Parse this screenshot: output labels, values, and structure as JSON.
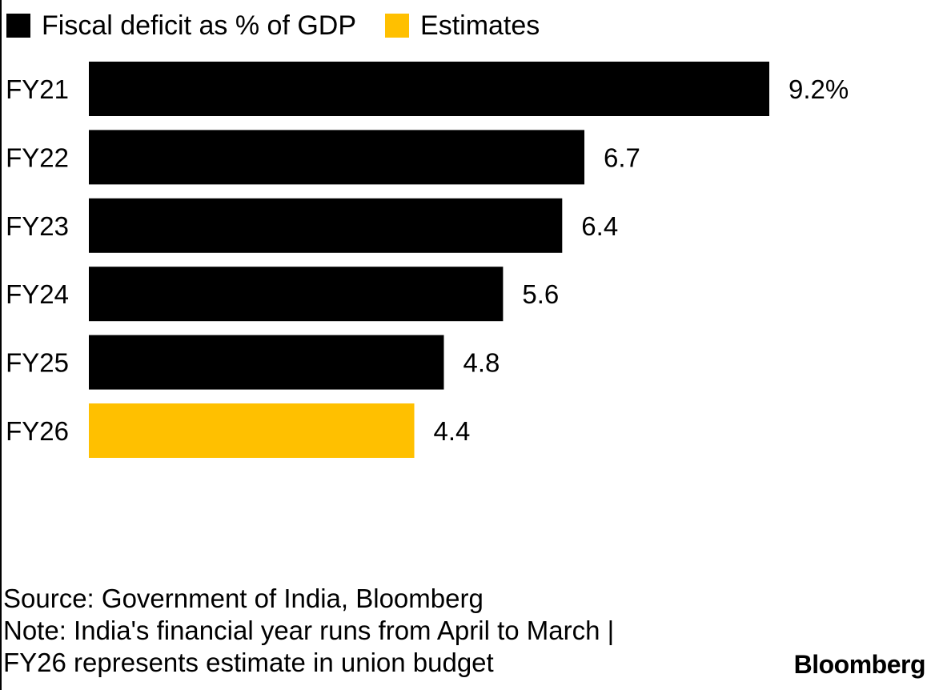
{
  "legend": [
    {
      "label": "Fiscal deficit as % of GDP",
      "color": "#000000"
    },
    {
      "label": "Estimates",
      "color": "#ffc000"
    }
  ],
  "chart_data": {
    "type": "bar",
    "orientation": "horizontal",
    "categories": [
      "FY21",
      "FY22",
      "FY23",
      "FY24",
      "FY25",
      "FY26"
    ],
    "values": [
      9.2,
      6.7,
      6.4,
      5.6,
      4.8,
      4.4
    ],
    "value_labels": [
      "9.2%",
      "6.7",
      "6.4",
      "5.6",
      "4.8",
      "4.4"
    ],
    "estimate": [
      false,
      false,
      false,
      false,
      false,
      true
    ],
    "colors": {
      "actual": "#000000",
      "estimate": "#ffc000"
    },
    "xlim": [
      0,
      9.2
    ],
    "grid": false
  },
  "footer": {
    "source": "Source: Government of India, Bloomberg",
    "note_line1": "Note: India's financial year runs from April to March |",
    "note_line2": "FY26 represents estimate in union budget"
  },
  "brand": "Bloomberg"
}
